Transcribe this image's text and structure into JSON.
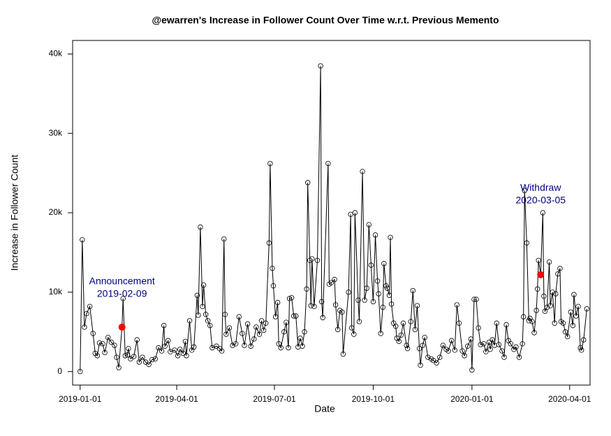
{
  "chart_data": {
    "type": "line",
    "title": "@ewarren's Increase in Follower Count Over Time w.r.t. Previous Memento",
    "xlabel": "Date",
    "ylabel": "Increase in Follower Count",
    "color": "#000000",
    "x": [
      "2019-01-01",
      "2019-01-03",
      "2019-01-05",
      "2019-01-07",
      "2019-01-10",
      "2019-01-13",
      "2019-01-15",
      "2019-01-17",
      "2019-01-19",
      "2019-01-22",
      "2019-01-24",
      "2019-01-27",
      "2019-01-30",
      "2019-02-02",
      "2019-02-04",
      "2019-02-06",
      "2019-02-09",
      "2019-02-10",
      "2019-02-12",
      "2019-02-14",
      "2019-02-15",
      "2019-02-17",
      "2019-02-20",
      "2019-02-23",
      "2019-02-25",
      "2019-02-28",
      "2019-03-03",
      "2019-03-06",
      "2019-03-09",
      "2019-03-12",
      "2019-03-15",
      "2019-03-18",
      "2019-03-20",
      "2019-03-21",
      "2019-03-24",
      "2019-03-26",
      "2019-03-30",
      "2019-04-02",
      "2019-04-04",
      "2019-04-07",
      "2019-04-09",
      "2019-04-10",
      "2019-04-13",
      "2019-04-15",
      "2019-04-17",
      "2019-04-20",
      "2019-04-21",
      "2019-04-23",
      "2019-04-25",
      "2019-04-26",
      "2019-04-28",
      "2019-04-30",
      "2019-05-02",
      "2019-05-04",
      "2019-05-08",
      "2019-05-11",
      "2019-05-13",
      "2019-05-15",
      "2019-05-16",
      "2019-05-17",
      "2019-05-20",
      "2019-05-23",
      "2019-05-26",
      "2019-05-29",
      "2019-06-01",
      "2019-06-03",
      "2019-06-06",
      "2019-06-09",
      "2019-06-12",
      "2019-06-14",
      "2019-06-17",
      "2019-06-19",
      "2019-06-21",
      "2019-06-23",
      "2019-06-26",
      "2019-06-27",
      "2019-06-29",
      "2019-06-30",
      "2019-07-02",
      "2019-07-04",
      "2019-07-05",
      "2019-07-07",
      "2019-07-10",
      "2019-07-12",
      "2019-07-14",
      "2019-07-15",
      "2019-07-17",
      "2019-07-19",
      "2019-07-21",
      "2019-07-23",
      "2019-07-25",
      "2019-07-27",
      "2019-07-29",
      "2019-07-31",
      "2019-08-01",
      "2019-08-03",
      "2019-08-04",
      "2019-08-05",
      "2019-08-07",
      "2019-08-10",
      "2019-08-13",
      "2019-08-14",
      "2019-08-15",
      "2019-08-20",
      "2019-08-21",
      "2019-08-23",
      "2019-08-26",
      "2019-08-27",
      "2019-08-29",
      "2019-08-31",
      "2019-09-02",
      "2019-09-03",
      "2019-09-08",
      "2019-09-10",
      "2019-09-11",
      "2019-09-13",
      "2019-09-14",
      "2019-09-17",
      "2019-09-18",
      "2019-09-21",
      "2019-09-23",
      "2019-09-25",
      "2019-09-27",
      "2019-09-29",
      "2019-10-01",
      "2019-10-03",
      "2019-10-05",
      "2019-10-06",
      "2019-10-08",
      "2019-10-10",
      "2019-10-11",
      "2019-10-13",
      "2019-10-14",
      "2019-10-16",
      "2019-10-17",
      "2019-10-18",
      "2019-10-20",
      "2019-10-22",
      "2019-10-23",
      "2019-10-25",
      "2019-10-27",
      "2019-10-29",
      "2019-11-01",
      "2019-11-02",
      "2019-11-05",
      "2019-11-07",
      "2019-11-09",
      "2019-11-11",
      "2019-11-13",
      "2019-11-14",
      "2019-11-16",
      "2019-11-18",
      "2019-11-21",
      "2019-11-24",
      "2019-11-26",
      "2019-11-29",
      "2019-12-02",
      "2019-12-05",
      "2019-12-08",
      "2019-12-10",
      "2019-12-13",
      "2019-12-16",
      "2019-12-18",
      "2019-12-20",
      "2019-12-23",
      "2019-12-25",
      "2019-12-28",
      "2019-12-31",
      "2020-01-01",
      "2020-01-03",
      "2020-01-05",
      "2020-01-07",
      "2020-01-09",
      "2020-01-12",
      "2020-01-14",
      "2020-01-17",
      "2020-01-18",
      "2020-01-20",
      "2020-01-22",
      "2020-01-24",
      "2020-01-26",
      "2020-01-29",
      "2020-01-31",
      "2020-02-02",
      "2020-02-04",
      "2020-02-06",
      "2020-02-09",
      "2020-02-11",
      "2020-02-14",
      "2020-02-17",
      "2020-02-18",
      "2020-02-19",
      "2020-02-21",
      "2020-02-23",
      "2020-02-24",
      "2020-02-26",
      "2020-02-28",
      "2020-03-01",
      "2020-03-02",
      "2020-03-03",
      "2020-03-05",
      "2020-03-07",
      "2020-03-08",
      "2020-03-09",
      "2020-03-11",
      "2020-03-13",
      "2020-03-14",
      "2020-03-16",
      "2020-03-18",
      "2020-03-19",
      "2020-03-21",
      "2020-03-23",
      "2020-03-24",
      "2020-03-26",
      "2020-03-28",
      "2020-03-30",
      "2020-04-02",
      "2020-04-04",
      "2020-04-05",
      "2020-04-07",
      "2020-04-09",
      "2020-04-11",
      "2020-04-12",
      "2020-04-14",
      "2020-04-17"
    ],
    "values": [
      0,
      16600,
      5600,
      7300,
      8200,
      4800,
      2300,
      2000,
      3600,
      3500,
      2400,
      4300,
      3700,
      3300,
      1800,
      500,
      5600,
      9200,
      2000,
      2100,
      2900,
      1600,
      1900,
      4000,
      1200,
      1800,
      1200,
      900,
      1500,
      1600,
      3000,
      2600,
      5800,
      3200,
      3900,
      2500,
      2700,
      2000,
      2800,
      2300,
      3800,
      2000,
      6400,
      2700,
      3100,
      9600,
      7100,
      18200,
      8200,
      10900,
      7200,
      6400,
      5800,
      3000,
      3200,
      2900,
      2600,
      16700,
      7200,
      4700,
      5500,
      3300,
      3500,
      6900,
      4800,
      3300,
      6000,
      3200,
      4100,
      5600,
      4700,
      6400,
      5200,
      6100,
      16200,
      26200,
      13000,
      10800,
      6900,
      8700,
      3500,
      3000,
      5000,
      6200,
      3000,
      9200,
      9300,
      7000,
      7000,
      3100,
      4200,
      3200,
      5000,
      10400,
      23800,
      14000,
      8300,
      14200,
      8200,
      14000,
      38500,
      8800,
      6800,
      26200,
      11000,
      11200,
      11600,
      8400,
      5300,
      7700,
      7500,
      2200,
      10000,
      19800,
      5500,
      4700,
      20000,
      9000,
      6300,
      25200,
      9000,
      10500,
      18500,
      13400,
      8800,
      17200,
      11400,
      9800,
      4800,
      8100,
      13600,
      10800,
      10500,
      9600,
      16900,
      8500,
      6100,
      5700,
      4200,
      3800,
      4600,
      6100,
      3300,
      2900,
      6300,
      10200,
      5300,
      8300,
      2900,
      800,
      3300,
      4300,
      1800,
      1600,
      1400,
      1100,
      1800,
      3300,
      2800,
      2600,
      3900,
      2700,
      8400,
      6100,
      2600,
      2000,
      3200,
      4100,
      200,
      9100,
      9100,
      5500,
      3400,
      3500,
      2500,
      3700,
      2800,
      4000,
      3300,
      6100,
      3400,
      2600,
      1800,
      5900,
      3900,
      3500,
      2800,
      3100,
      1800,
      3500,
      6900,
      22800,
      16200,
      6400,
      6700,
      6300,
      4900,
      7700,
      10400,
      14000,
      12200,
      20000,
      9500,
      7600,
      8100,
      13800,
      8300,
      10000,
      6100,
      9800,
      12300,
      13000,
      6300,
      6100,
      5000,
      4400,
      7500,
      5800,
      9700,
      7000,
      8200,
      3000,
      2700,
      4000,
      7900
    ],
    "xlim": [
      "2018-12-25",
      "2020-04-20"
    ],
    "ylim": [
      -1700,
      41700
    ],
    "xticks": [
      "2019-01-01",
      "2019-04-01",
      "2019-07-01",
      "2019-10-01",
      "2020-01-01",
      "2020-04-01"
    ],
    "yticks": [
      0,
      {
        "value": 10000,
        "label": "10k"
      },
      {
        "value": 20000,
        "label": "20k"
      },
      {
        "value": 30000,
        "label": "30k"
      },
      {
        "value": 40000,
        "label": "40k"
      }
    ],
    "highlights": [
      {
        "label": "Announcement",
        "date": "2019-02-09",
        "value": 5600,
        "color": "#ff0000"
      },
      {
        "label": "Withdraw",
        "date": "2020-03-05",
        "value": 12200,
        "color": "#ff0000"
      }
    ]
  }
}
